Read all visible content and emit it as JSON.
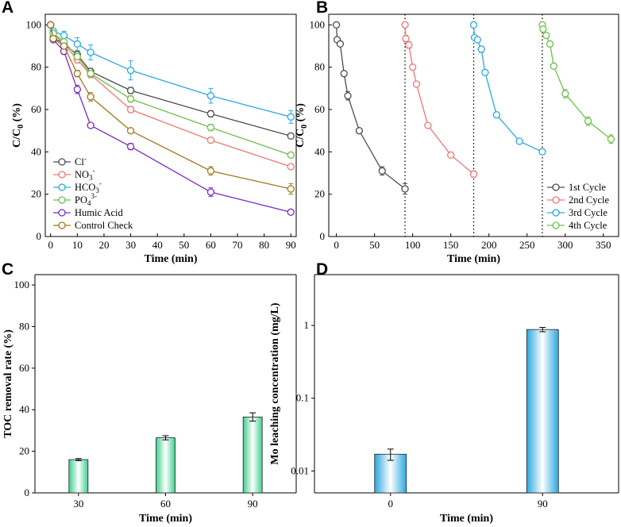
{
  "figure": {
    "panels": [
      {
        "id": "A",
        "letter": "A",
        "type": "line",
        "xlabel": "Time (min)",
        "ylabel": "C/C0 (%)",
        "xlim": [
          -2,
          92
        ],
        "ylim": [
          0,
          105
        ],
        "xticks": [
          0,
          10,
          20,
          30,
          40,
          50,
          60,
          70,
          80,
          90
        ],
        "yticks": [
          0,
          20,
          40,
          60,
          80,
          100
        ],
        "legend_position": "bottom-left",
        "series": [
          {
            "name": "Cl-",
            "label_main": "Cl",
            "label_sup": "-",
            "color": "#4d4d4d",
            "x": [
              0,
              1,
              5,
              10,
              15,
              30,
              60,
              90
            ],
            "y": [
              100,
              94,
              91,
              86,
              78,
              69,
              58,
              47.5
            ],
            "err": [
              0,
              1,
              1,
              1.5,
              1.5,
              1.5,
              1.5,
              1
            ]
          },
          {
            "name": "NO3-",
            "label_main": "NO",
            "label_sub": "3",
            "label_sup": "-",
            "color": "#f07575",
            "x": [
              0,
              1,
              5,
              10,
              15,
              30,
              60,
              90
            ],
            "y": [
              100,
              96,
              91,
              83.5,
              76.5,
              60,
              45.5,
              33
            ],
            "err": [
              0,
              1,
              1,
              1.5,
              1.5,
              1.5,
              1,
              1
            ]
          },
          {
            "name": "HCO3-",
            "label_main": "HCO",
            "label_sub": "3",
            "label_sup": "-",
            "color": "#2aa8e0",
            "x": [
              0,
              1,
              5,
              10,
              15,
              30,
              60,
              90
            ],
            "y": [
              100,
              97,
              95,
              91,
              87,
              78.5,
              66.5,
              56.5
            ],
            "err": [
              0,
              1,
              2,
              3,
              3.5,
              4.5,
              3.5,
              3
            ]
          },
          {
            "name": "PO4 3-",
            "label_main": "PO",
            "label_sub": "4",
            "label_sup": "3-",
            "color": "#6cc04a",
            "x": [
              0,
              1,
              5,
              10,
              15,
              30,
              60,
              90
            ],
            "y": [
              100,
              96,
              92,
              85,
              77,
              65,
              51.5,
              38.5
            ],
            "err": [
              0,
              1,
              1,
              1.5,
              1.5,
              1.5,
              1.5,
              1
            ]
          },
          {
            "name": "Humic Acid",
            "label_main": "Humic Acid",
            "color": "#7a2bc6",
            "x": [
              0,
              1,
              5,
              10,
              15,
              30,
              60,
              90
            ],
            "y": [
              100,
              93,
              87.5,
              69.5,
              52.5,
              42.5,
              21,
              11.5
            ],
            "err": [
              0,
              1,
              1.5,
              2,
              1,
              1.5,
              2,
              1
            ]
          },
          {
            "name": "Control Check",
            "label_main": "Control Check",
            "color": "#a07a1e",
            "x": [
              0,
              1,
              5,
              10,
              15,
              30,
              60,
              90
            ],
            "y": [
              100,
              93.5,
              90,
              77,
              66,
              50,
              31,
              22.5
            ],
            "err": [
              0,
              1,
              1,
              1.5,
              2,
              1,
              2,
              2.5
            ]
          }
        ]
      },
      {
        "id": "B",
        "letter": "B",
        "type": "line",
        "xlabel": "Time (min)",
        "ylabel": "C/C0 (%)",
        "xlim": [
          -10,
          370
        ],
        "ylim": [
          0,
          105
        ],
        "xticks": [
          0,
          50,
          100,
          150,
          200,
          250,
          300,
          350
        ],
        "yticks": [
          0,
          20,
          40,
          60,
          80,
          100
        ],
        "dividers_x": [
          90,
          180,
          270
        ],
        "legend_position": "bottom-right",
        "series": [
          {
            "name": "1st Cycle",
            "color": "#4d4d4d",
            "x": [
              0,
              1,
              5,
              10,
              15,
              30,
              60,
              90
            ],
            "y": [
              100,
              93,
              91,
              77,
              66.5,
              50,
              31,
              22.5
            ],
            "err": [
              0,
              1,
              1,
              1,
              2,
              1,
              2,
              2.5
            ]
          },
          {
            "name": "2nd Cycle",
            "color": "#f07575",
            "x": [
              90,
              91,
              95,
              100,
              105,
              120,
              150,
              180
            ],
            "y": [
              100,
              93.5,
              90.5,
              80,
              72,
              52.5,
              38.5,
              29.5
            ],
            "err": [
              0,
              1.5,
              1.5,
              1,
              1,
              1,
              1,
              1.5
            ]
          },
          {
            "name": "3rd Cycle",
            "color": "#2aa8e0",
            "x": [
              180,
              181,
              185,
              190,
              195,
              210,
              240,
              270
            ],
            "y": [
              100,
              94,
              93,
              88.5,
              77.5,
              57.5,
              45,
              40
            ],
            "err": [
              0,
              1,
              1,
              1.5,
              1,
              1,
              1,
              1
            ]
          },
          {
            "name": "4th Cycle",
            "color": "#6cc04a",
            "x": [
              270,
              271,
              275,
              280,
              285,
              300,
              330,
              360
            ],
            "y": [
              100,
              98,
              95,
              91,
              80.5,
              67.5,
              54.5,
              46
            ],
            "err": [
              0,
              1,
              1,
              1,
              1,
              2,
              2,
              2
            ]
          }
        ]
      },
      {
        "id": "C",
        "letter": "C",
        "type": "bar",
        "xlabel": "Time (min)",
        "ylabel": "TOC removal rate (%)",
        "categories": [
          "30",
          "60",
          "90"
        ],
        "values": [
          16,
          26.5,
          36.5
        ],
        "err": [
          0.5,
          1,
          2
        ],
        "ylim": [
          0,
          105
        ],
        "yticks": [
          0,
          20,
          40,
          60,
          80,
          100
        ],
        "bar_color": "#3ecf8e"
      },
      {
        "id": "D",
        "letter": "D",
        "type": "bar",
        "yscale": "log",
        "xlabel": "Time (min)",
        "ylabel": "Mo leaching concentration (mg/L)",
        "categories": [
          "0",
          "90"
        ],
        "values": [
          0.017,
          0.88
        ],
        "err_low": [
          0.014,
          0.82
        ],
        "err_high": [
          0.02,
          0.94
        ],
        "ylim": [
          0.005,
          5
        ],
        "yticks": [
          0.01,
          0.1,
          1
        ],
        "yticklabels": [
          "0.01",
          "0.1",
          "1"
        ],
        "bar_color": "#2aa8e0"
      }
    ]
  }
}
